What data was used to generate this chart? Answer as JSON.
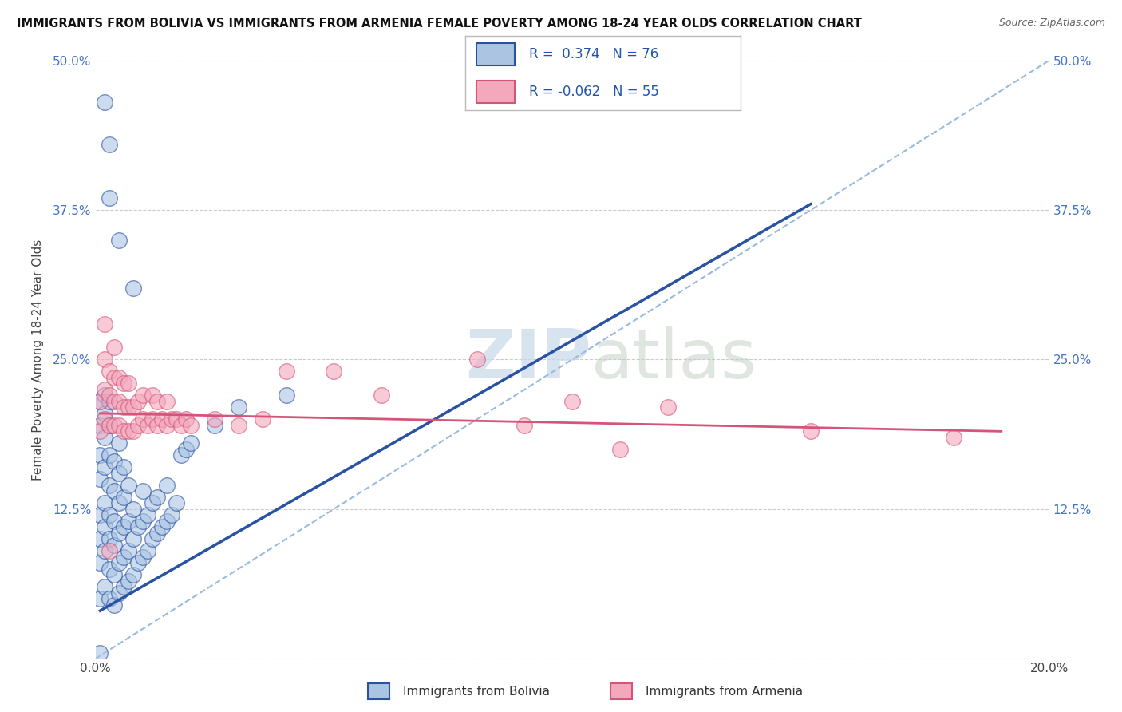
{
  "title": "IMMIGRANTS FROM BOLIVIA VS IMMIGRANTS FROM ARMENIA FEMALE POVERTY AMONG 18-24 YEAR OLDS CORRELATION CHART",
  "source": "Source: ZipAtlas.com",
  "ylabel": "Female Poverty Among 18-24 Year Olds",
  "xlim": [
    0.0,
    0.2
  ],
  "ylim": [
    0.0,
    0.5
  ],
  "xticks": [
    0.0,
    0.05,
    0.1,
    0.15,
    0.2
  ],
  "yticks": [
    0.0,
    0.125,
    0.25,
    0.375,
    0.5
  ],
  "bolivia_color": "#aac4e2",
  "armenia_color": "#f4a8bc",
  "bolivia_line_color": "#2952a3",
  "armenia_line_color": "#d4547a",
  "R_bolivia": 0.374,
  "N_bolivia": 76,
  "R_armenia": -0.062,
  "N_armenia": 55,
  "legend_label_bolivia": "Immigrants from Bolivia",
  "legend_label_armenia": "Immigrants from Armenia",
  "watermark_zip": "ZIP",
  "watermark_atlas": "atlas",
  "background_color": "#ffffff",
  "bolivia_scatter": [
    [
      0.001,
      0.05
    ],
    [
      0.001,
      0.08
    ],
    [
      0.001,
      0.1
    ],
    [
      0.001,
      0.12
    ],
    [
      0.001,
      0.15
    ],
    [
      0.001,
      0.17
    ],
    [
      0.001,
      0.195
    ],
    [
      0.001,
      0.215
    ],
    [
      0.002,
      0.06
    ],
    [
      0.002,
      0.09
    ],
    [
      0.002,
      0.11
    ],
    [
      0.002,
      0.13
    ],
    [
      0.002,
      0.16
    ],
    [
      0.002,
      0.185
    ],
    [
      0.002,
      0.205
    ],
    [
      0.002,
      0.22
    ],
    [
      0.003,
      0.05
    ],
    [
      0.003,
      0.075
    ],
    [
      0.003,
      0.1
    ],
    [
      0.003,
      0.12
    ],
    [
      0.003,
      0.145
    ],
    [
      0.003,
      0.17
    ],
    [
      0.003,
      0.195
    ],
    [
      0.003,
      0.215
    ],
    [
      0.004,
      0.045
    ],
    [
      0.004,
      0.07
    ],
    [
      0.004,
      0.095
    ],
    [
      0.004,
      0.115
    ],
    [
      0.004,
      0.14
    ],
    [
      0.004,
      0.165
    ],
    [
      0.005,
      0.055
    ],
    [
      0.005,
      0.08
    ],
    [
      0.005,
      0.105
    ],
    [
      0.005,
      0.13
    ],
    [
      0.005,
      0.155
    ],
    [
      0.005,
      0.18
    ],
    [
      0.006,
      0.06
    ],
    [
      0.006,
      0.085
    ],
    [
      0.006,
      0.11
    ],
    [
      0.006,
      0.135
    ],
    [
      0.006,
      0.16
    ],
    [
      0.007,
      0.065
    ],
    [
      0.007,
      0.09
    ],
    [
      0.007,
      0.115
    ],
    [
      0.007,
      0.145
    ],
    [
      0.008,
      0.07
    ],
    [
      0.008,
      0.1
    ],
    [
      0.008,
      0.125
    ],
    [
      0.009,
      0.08
    ],
    [
      0.009,
      0.11
    ],
    [
      0.01,
      0.085
    ],
    [
      0.01,
      0.115
    ],
    [
      0.01,
      0.14
    ],
    [
      0.011,
      0.09
    ],
    [
      0.011,
      0.12
    ],
    [
      0.012,
      0.1
    ],
    [
      0.012,
      0.13
    ],
    [
      0.013,
      0.105
    ],
    [
      0.013,
      0.135
    ],
    [
      0.014,
      0.11
    ],
    [
      0.015,
      0.115
    ],
    [
      0.015,
      0.145
    ],
    [
      0.016,
      0.12
    ],
    [
      0.017,
      0.13
    ],
    [
      0.018,
      0.17
    ],
    [
      0.019,
      0.175
    ],
    [
      0.02,
      0.18
    ],
    [
      0.025,
      0.195
    ],
    [
      0.03,
      0.21
    ],
    [
      0.04,
      0.22
    ],
    [
      0.003,
      0.43
    ],
    [
      0.003,
      0.385
    ],
    [
      0.005,
      0.35
    ],
    [
      0.008,
      0.31
    ],
    [
      0.002,
      0.465
    ],
    [
      0.001,
      0.005
    ]
  ],
  "armenia_scatter": [
    [
      0.001,
      0.19
    ],
    [
      0.001,
      0.215
    ],
    [
      0.002,
      0.2
    ],
    [
      0.002,
      0.225
    ],
    [
      0.002,
      0.25
    ],
    [
      0.002,
      0.28
    ],
    [
      0.003,
      0.195
    ],
    [
      0.003,
      0.22
    ],
    [
      0.003,
      0.24
    ],
    [
      0.004,
      0.195
    ],
    [
      0.004,
      0.215
    ],
    [
      0.004,
      0.235
    ],
    [
      0.004,
      0.26
    ],
    [
      0.005,
      0.195
    ],
    [
      0.005,
      0.215
    ],
    [
      0.005,
      0.235
    ],
    [
      0.006,
      0.19
    ],
    [
      0.006,
      0.21
    ],
    [
      0.006,
      0.23
    ],
    [
      0.007,
      0.19
    ],
    [
      0.007,
      0.21
    ],
    [
      0.007,
      0.23
    ],
    [
      0.008,
      0.19
    ],
    [
      0.008,
      0.21
    ],
    [
      0.009,
      0.195
    ],
    [
      0.009,
      0.215
    ],
    [
      0.01,
      0.2
    ],
    [
      0.01,
      0.22
    ],
    [
      0.011,
      0.195
    ],
    [
      0.012,
      0.2
    ],
    [
      0.012,
      0.22
    ],
    [
      0.013,
      0.195
    ],
    [
      0.013,
      0.215
    ],
    [
      0.014,
      0.2
    ],
    [
      0.015,
      0.195
    ],
    [
      0.015,
      0.215
    ],
    [
      0.016,
      0.2
    ],
    [
      0.017,
      0.2
    ],
    [
      0.018,
      0.195
    ],
    [
      0.019,
      0.2
    ],
    [
      0.02,
      0.195
    ],
    [
      0.025,
      0.2
    ],
    [
      0.03,
      0.195
    ],
    [
      0.035,
      0.2
    ],
    [
      0.04,
      0.24
    ],
    [
      0.05,
      0.24
    ],
    [
      0.06,
      0.22
    ],
    [
      0.08,
      0.25
    ],
    [
      0.09,
      0.195
    ],
    [
      0.1,
      0.215
    ],
    [
      0.11,
      0.175
    ],
    [
      0.12,
      0.21
    ],
    [
      0.15,
      0.19
    ],
    [
      0.18,
      0.185
    ],
    [
      0.003,
      0.09
    ]
  ],
  "bolivia_trend": [
    0.001,
    0.04,
    0.15,
    0.38
  ],
  "armenia_trend": [
    0.001,
    0.205,
    0.19,
    0.19
  ],
  "diag_line": [
    [
      0.0,
      0.0
    ],
    [
      0.2,
      0.5
    ]
  ]
}
